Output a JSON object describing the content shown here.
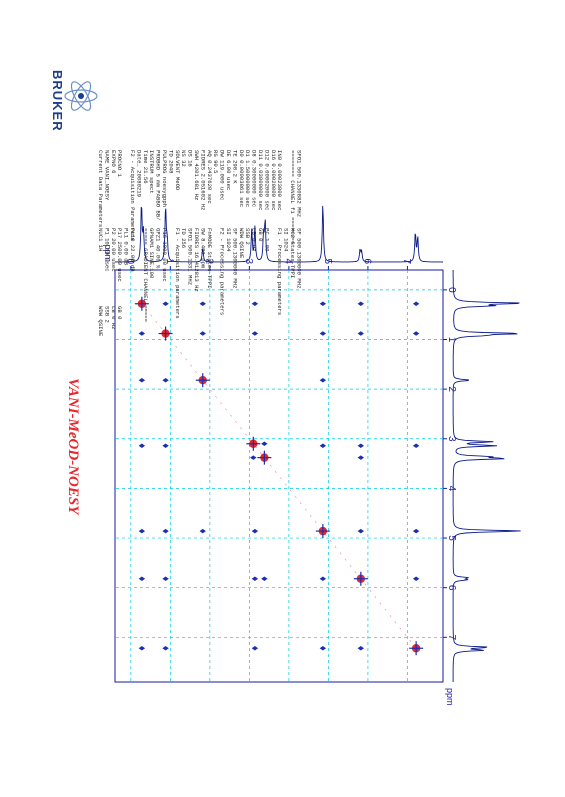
{
  "title": "VANI-MeOD-NOESY",
  "logo": {
    "text": "BRUKER"
  },
  "colors": {
    "positive": "#e8262b",
    "negative": "#1a2fb3",
    "axis": "#1a1aa6",
    "grid": "#00c8e6",
    "trace": "#0a1a8a"
  },
  "params": [
    "Current Data Parameters",
    "NAME           VANI_NOESY",
    "EXPNO                   6",
    "PROCNO                  1",
    "",
    "F2 - Acquisition Parameters",
    "Date_           20080219",
    "Time               21.56",
    "INSTRUM             spect",
    "PROBHD   5 mm PABBO BB/",
    "PULPROG      noesygpph",
    "TD                  2048",
    "SOLVENT             MeOD",
    "NS                    32",
    "DS                    16",
    "SWH             4201.681 Hz",
    "FIDRES          2.051602 Hz",
    "AQ             0.2437620 sec",
    "RG                  90.5",
    "DW               119.000 usec",
    "DE                  6.00 usec",
    "TE                 298.2 K",
    "D0            0.00003861 sec",
    "D1            1.50000000 sec",
    "D8            0.30000000 sec",
    "D11           0.03000000 sec",
    "D12           0.00002000 sec",
    "D16           0.00020000 sec",
    "IN0           0.00023800 sec",
    "",
    "======== CHANNEL f1 ========",
    "SFO1          500.1330882 MHz",
    "NUC1                  1H",
    "P1                 10.00 usec",
    "P2                 20.00 usec",
    "P17              2500.00 usec",
    "PL1               0.00 dB",
    "PL10             22.00 dB",
    "",
    "===== GRADIENT CHANNEL =====",
    "GPNAM1          SINE.100",
    "GPZ1               40.00 %",
    "P16              1000.00 usec",
    "",
    "F1 - Acquisition parameters",
    "TD                   256",
    "SFO1          500.1331 MHz",
    "FIDRES         16.412813 Hz",
    "SW                 8.401 ppm",
    "FnMODE       States-TPPI",
    "",
    "F2 - Processing parameters",
    "SI                  1024",
    "SF          500.1300000 MHz",
    "WDW                 QSINE",
    "SSB                     2",
    "LB                  0 Hz",
    "GB                     0",
    "PC                  1.00",
    "",
    "F1 - Processing parameters",
    "SI                  1024",
    "MC2          States-TPPI",
    "SF          500.1300000 MHz",
    "WDW                 QSINE",
    "SSB                     2",
    "LB                  0 Hz",
    "GB                     0"
  ],
  "chart_data": {
    "type": "scatter",
    "title": "VANI-MeOD-NOESY",
    "x_axis": {
      "label": "ppm",
      "range": [
        -0.4,
        7.9
      ],
      "ticks": [
        0,
        1,
        2,
        3,
        4,
        5,
        6,
        7
      ]
    },
    "y_axis": {
      "label": "ppm",
      "range": [
        -0.4,
        7.9
      ],
      "ticks": [
        0,
        1,
        2,
        3,
        4,
        5,
        6,
        7
      ]
    },
    "grid": true,
    "projection_peaks": [
      {
        "ppm": 0.27,
        "height": 1.0
      },
      {
        "ppm": 0.32,
        "height": 0.5
      },
      {
        "ppm": 0.88,
        "height": 0.95
      },
      {
        "ppm": 0.92,
        "height": 0.35
      },
      {
        "ppm": 1.82,
        "height": 0.25
      },
      {
        "ppm": 3.06,
        "height": 0.55
      },
      {
        "ppm": 3.14,
        "height": 0.6
      },
      {
        "ppm": 3.36,
        "height": 0.45
      },
      {
        "ppm": 3.4,
        "height": 0.7
      },
      {
        "ppm": 4.86,
        "height": 1.0
      },
      {
        "ppm": 5.8,
        "height": 0.2
      },
      {
        "ppm": 5.84,
        "height": 0.18
      },
      {
        "ppm": 7.2,
        "height": 0.5
      },
      {
        "ppm": 7.26,
        "height": 0.42
      }
    ],
    "diagonal_peaks": [
      {
        "x": 0.28,
        "y": 0.28
      },
      {
        "x": 0.88,
        "y": 0.88
      },
      {
        "x": 1.82,
        "y": 1.82
      },
      {
        "x": 3.1,
        "y": 3.1
      },
      {
        "x": 3.38,
        "y": 3.38
      },
      {
        "x": 4.86,
        "y": 4.86
      },
      {
        "x": 5.82,
        "y": 5.82
      },
      {
        "x": 7.22,
        "y": 7.22
      }
    ],
    "cross_peaks": [
      {
        "x": 0.28,
        "y": 0.88
      },
      {
        "x": 0.88,
        "y": 0.28
      },
      {
        "x": 0.28,
        "y": 1.82
      },
      {
        "x": 1.82,
        "y": 0.28
      },
      {
        "x": 0.88,
        "y": 1.82
      },
      {
        "x": 1.82,
        "y": 0.88
      },
      {
        "x": 0.28,
        "y": 3.14
      },
      {
        "x": 3.14,
        "y": 0.28
      },
      {
        "x": 0.28,
        "y": 4.86
      },
      {
        "x": 4.86,
        "y": 0.28
      },
      {
        "x": 0.28,
        "y": 5.82
      },
      {
        "x": 5.82,
        "y": 0.28
      },
      {
        "x": 0.28,
        "y": 7.22
      },
      {
        "x": 7.22,
        "y": 0.28
      },
      {
        "x": 0.88,
        "y": 4.86
      },
      {
        "x": 4.86,
        "y": 0.88
      },
      {
        "x": 0.88,
        "y": 3.14
      },
      {
        "x": 3.14,
        "y": 0.88
      },
      {
        "x": 0.88,
        "y": 5.82
      },
      {
        "x": 5.82,
        "y": 0.88
      },
      {
        "x": 0.88,
        "y": 7.22
      },
      {
        "x": 7.22,
        "y": 0.88
      },
      {
        "x": 1.82,
        "y": 4.86
      },
      {
        "x": 4.86,
        "y": 1.82
      },
      {
        "x": 3.1,
        "y": 3.38
      },
      {
        "x": 3.38,
        "y": 3.1
      },
      {
        "x": 3.14,
        "y": 4.86
      },
      {
        "x": 4.86,
        "y": 3.14
      },
      {
        "x": 3.14,
        "y": 5.82
      },
      {
        "x": 5.82,
        "y": 3.14
      },
      {
        "x": 3.38,
        "y": 5.82
      },
      {
        "x": 5.82,
        "y": 3.38
      },
      {
        "x": 3.14,
        "y": 7.22
      },
      {
        "x": 7.22,
        "y": 3.14
      },
      {
        "x": 4.86,
        "y": 7.22
      },
      {
        "x": 7.22,
        "y": 4.86
      },
      {
        "x": 5.82,
        "y": 7.22
      },
      {
        "x": 7.22,
        "y": 5.82
      },
      {
        "x": 4.86,
        "y": 5.82
      },
      {
        "x": 5.82,
        "y": 4.86
      }
    ]
  }
}
